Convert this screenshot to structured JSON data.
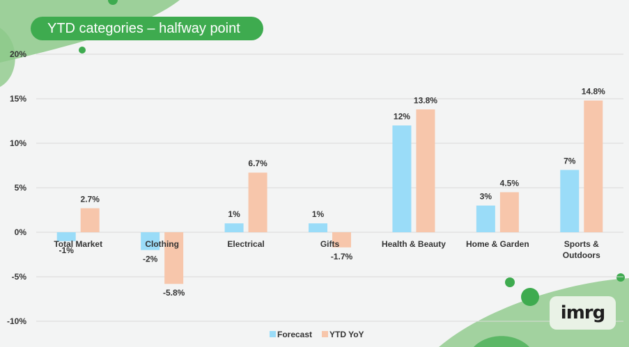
{
  "title": "YTD categories – halfway point",
  "logo": {
    "text": "imrg"
  },
  "colors": {
    "forecast": "#9adcf8",
    "ytd": "#f7c6ab",
    "brand": "#3eab4f",
    "grid": "#d9d9d9"
  },
  "chart_data": {
    "type": "bar",
    "categories": [
      [
        "Total Market"
      ],
      [
        "Clothing"
      ],
      [
        "Electrical"
      ],
      [
        "Gifts"
      ],
      [
        "Health & Beauty"
      ],
      [
        "Home & Garden"
      ],
      [
        "Sports &",
        "Outdoors"
      ]
    ],
    "series": [
      {
        "name": "Forecast",
        "values": [
          -1,
          -2,
          1,
          1,
          12,
          3,
          7
        ],
        "labels": [
          "-1%",
          "-2%",
          "1%",
          "1%",
          "12%",
          "3%",
          "7%"
        ]
      },
      {
        "name": "YTD YoY",
        "values": [
          2.7,
          -5.8,
          6.7,
          -1.7,
          13.8,
          4.5,
          14.8
        ],
        "labels": [
          "2.7%",
          "-5.8%",
          "6.7%",
          "-1.7%",
          "13.8%",
          "4.5%",
          "14.8%"
        ]
      }
    ],
    "yticks": [
      20,
      15,
      10,
      5,
      0,
      -5,
      -10
    ],
    "ytick_labels": [
      "20%",
      "15%",
      "10%",
      "5%",
      "0%",
      "-5%",
      "-10%"
    ],
    "ylim": [
      -10,
      20
    ],
    "grid": true,
    "legend": "bottom"
  }
}
